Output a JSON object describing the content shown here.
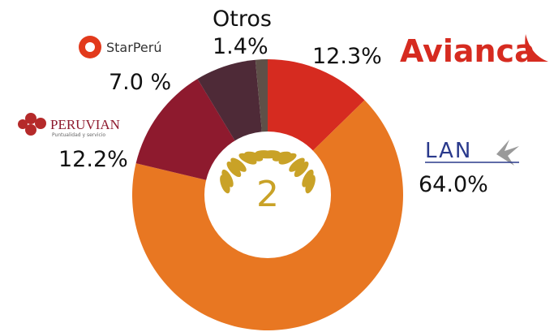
{
  "chart_data": {
    "type": "donut",
    "categories": [
      "Avianca",
      "LAN",
      "PERUVIAN",
      "StarPerú",
      "Otros"
    ],
    "values": [
      12.3,
      64.0,
      12.2,
      7.0,
      1.4
    ],
    "value_labels": [
      "12.3%",
      "64.0%",
      "12.2%",
      "7.0 %",
      "1.4%"
    ],
    "colors": [
      "#d62b20",
      "#e87722",
      "#8e1a2e",
      "#4e2a37",
      "#5e5048"
    ],
    "peruvian_tagline": "Puntualidad y servicio",
    "center_label": "2"
  }
}
